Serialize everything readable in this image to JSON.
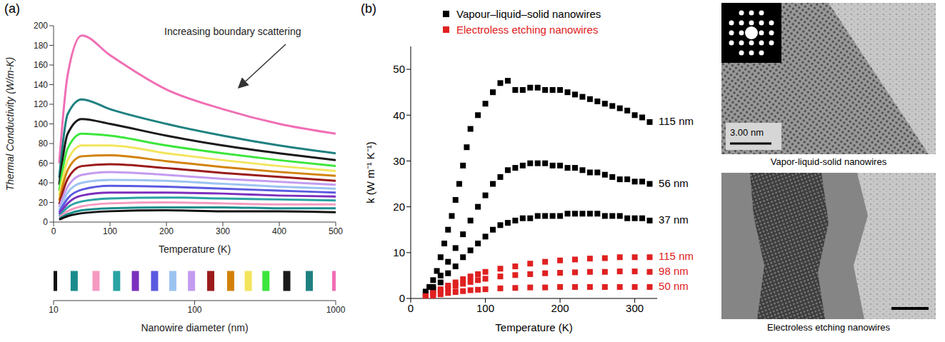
{
  "chart_data": [
    {
      "panel": "(a)",
      "type": "line",
      "annotation": "Increasing boundary scattering",
      "x_label": "Temperature (K)",
      "y_label": "Thermal Conductivity (W/m-K)",
      "x": [
        10,
        25,
        50,
        100,
        200,
        300,
        400,
        500
      ],
      "xlim": [
        0,
        500
      ],
      "xticks": [
        0,
        100,
        200,
        300,
        400,
        500
      ],
      "ylim": [
        0,
        200
      ],
      "yticks": [
        0,
        20,
        40,
        60,
        80,
        100,
        120,
        140,
        160,
        180,
        200
      ],
      "series": [
        {
          "diameter": 1000,
          "color": "#f06eb4",
          "values": [
            60,
            150,
            190,
            170,
            135,
            115,
            100,
            90
          ]
        },
        {
          "diameter": 650,
          "color": "#1f8080",
          "values": [
            45,
            110,
            125,
            115,
            100,
            88,
            78,
            70
          ]
        },
        {
          "diameter": 450,
          "color": "#1a1a1a",
          "values": [
            38,
            90,
            105,
            100,
            88,
            78,
            70,
            63
          ]
        },
        {
          "diameter": 320,
          "color": "#3ce63c",
          "values": [
            32,
            75,
            90,
            88,
            78,
            70,
            63,
            57
          ]
        },
        {
          "diameter": 240,
          "color": "#f2e55c",
          "values": [
            27,
            63,
            78,
            78,
            70,
            63,
            57,
            52
          ]
        },
        {
          "diameter": 180,
          "color": "#d2820a",
          "values": [
            22,
            53,
            67,
            68,
            62,
            56,
            51,
            47
          ]
        },
        {
          "diameter": 130,
          "color": "#9b1b1b",
          "values": [
            18,
            44,
            57,
            59,
            55,
            50,
            46,
            42
          ]
        },
        {
          "diameter": 95,
          "color": "#c39bf0",
          "values": [
            15,
            36,
            48,
            51,
            48,
            44,
            41,
            38
          ]
        },
        {
          "diameter": 70,
          "color": "#9cc3f0",
          "values": [
            12,
            30,
            40,
            43,
            42,
            39,
            36,
            34
          ]
        },
        {
          "diameter": 52,
          "color": "#5a5ae0",
          "values": [
            10,
            24,
            33,
            37,
            36,
            34,
            32,
            30
          ]
        },
        {
          "diameter": 38,
          "color": "#7b2fbe",
          "values": [
            8,
            19,
            27,
            30,
            30,
            29,
            27,
            26
          ]
        },
        {
          "diameter": 28,
          "color": "#2aa3a3",
          "values": [
            6,
            15,
            21,
            24,
            25,
            24,
            23,
            22
          ]
        },
        {
          "diameter": 20,
          "color": "#f59ac0",
          "values": [
            5,
            11,
            16,
            19,
            20,
            19,
            18,
            18
          ]
        },
        {
          "diameter": 14,
          "color": "#1a8c8c",
          "values": [
            3.5,
            8,
            12,
            14,
            15,
            15,
            14,
            14
          ]
        },
        {
          "diameter": 10,
          "color": "#111111",
          "values": [
            2.5,
            6,
            9,
            11,
            12,
            11,
            11,
            10
          ]
        }
      ],
      "diameter_axis": {
        "label": "Nanowire diameter (nm)",
        "log": true,
        "lim": [
          10,
          1000
        ],
        "ticks": [
          10,
          100,
          1000
        ]
      }
    },
    {
      "panel": "(b)",
      "type": "scatter",
      "marker": "square",
      "x_label": "Temperature (K)",
      "y_label": "k (W m⁻¹ K⁻¹)",
      "xlim": [
        0,
        330
      ],
      "xticks": [
        0,
        100,
        200,
        300
      ],
      "ylim": [
        0,
        55
      ],
      "yticks": [
        0,
        10,
        20,
        30,
        40,
        50
      ],
      "legend": "top right",
      "groups": [
        {
          "name": "Vapour–liquid–solid nanowires",
          "color": "#000000",
          "series": [
            {
              "name": "115 nm",
              "x": [
                20,
                25,
                30,
                35,
                40,
                45,
                50,
                55,
                60,
                65,
                70,
                75,
                80,
                90,
                100,
                110,
                120,
                130,
                140,
                150,
                160,
                170,
                180,
                190,
                200,
                210,
                220,
                230,
                240,
                250,
                260,
                270,
                280,
                290,
                300,
                310,
                320
              ],
              "values": [
                1.5,
                2.5,
                4,
                6,
                9,
                12,
                15,
                18,
                21.5,
                25,
                29,
                33,
                37,
                40,
                42.5,
                45,
                47,
                47.5,
                45.5,
                45.5,
                46,
                46,
                45.5,
                45.5,
                45.5,
                45,
                44.5,
                44,
                43.5,
                43,
                42.5,
                42,
                41.5,
                41,
                40,
                39.5,
                38.5
              ]
            },
            {
              "name": "56 nm",
              "x": [
                20,
                30,
                40,
                50,
                60,
                70,
                80,
                90,
                100,
                110,
                120,
                130,
                140,
                150,
                160,
                170,
                180,
                190,
                200,
                210,
                220,
                230,
                240,
                250,
                260,
                270,
                280,
                290,
                300,
                310,
                320
              ],
              "values": [
                1,
                2.5,
                5,
                8,
                11,
                14,
                17,
                20,
                22.5,
                25,
                26.5,
                28,
                28.5,
                29,
                29.5,
                29.5,
                29.5,
                29,
                29,
                28.5,
                28.5,
                28,
                27.5,
                27.5,
                27,
                26.5,
                26,
                26,
                25.5,
                25.5,
                25
              ]
            },
            {
              "name": "37 nm",
              "x": [
                20,
                30,
                40,
                50,
                60,
                70,
                80,
                90,
                100,
                110,
                120,
                130,
                140,
                150,
                160,
                170,
                180,
                190,
                200,
                210,
                220,
                230,
                240,
                250,
                260,
                270,
                280,
                290,
                300,
                310,
                320
              ],
              "values": [
                0.8,
                2,
                3.5,
                5.5,
                7,
                9,
                10.5,
                12,
                13.5,
                15,
                16,
                16.5,
                17,
                17.5,
                17.5,
                18,
                18,
                18,
                18,
                18.5,
                18.5,
                18.5,
                18.5,
                18.5,
                18,
                18,
                18,
                17.5,
                17.5,
                17.5,
                17
              ]
            }
          ]
        },
        {
          "name": "Electroless etching nanowires",
          "color": "#e02020",
          "series": [
            {
              "name": "115 nm",
              "x": [
                20,
                30,
                40,
                50,
                60,
                70,
                80,
                90,
                100,
                120,
                140,
                160,
                180,
                200,
                220,
                240,
                260,
                280,
                300,
                320
              ],
              "values": [
                0.5,
                1.2,
                2,
                2.8,
                3.5,
                4.2,
                4.8,
                5.3,
                5.8,
                6.5,
                7,
                7.6,
                8,
                8.3,
                8.5,
                8.7,
                8.8,
                9,
                9,
                9
              ]
            },
            {
              "name": "98 nm",
              "x": [
                20,
                30,
                40,
                50,
                60,
                70,
                80,
                90,
                100,
                120,
                140,
                160,
                180,
                200,
                220,
                240,
                260,
                280,
                300,
                320
              ],
              "values": [
                0.4,
                1,
                1.6,
                2.2,
                2.7,
                3.2,
                3.6,
                4,
                4.3,
                4.8,
                5.1,
                5.3,
                5.5,
                5.6,
                5.7,
                5.8,
                5.8,
                5.9,
                5.9,
                5.8
              ]
            },
            {
              "name": "50 nm",
              "x": [
                20,
                30,
                40,
                50,
                60,
                70,
                80,
                90,
                100,
                120,
                140,
                160,
                180,
                200,
                220,
                240,
                260,
                280,
                300,
                320
              ],
              "values": [
                0.3,
                0.6,
                0.9,
                1.2,
                1.4,
                1.6,
                1.8,
                1.9,
                2,
                2.2,
                2.3,
                2.4,
                2.4,
                2.5,
                2.5,
                2.5,
                2.5,
                2.5,
                2.5,
                2.5
              ]
            }
          ]
        }
      ]
    }
  ],
  "images": [
    {
      "caption": "Vapor-liquid-solid nanowires",
      "scale_bar": "3.00 nm"
    },
    {
      "caption": "Electroless etching nanowires"
    }
  ]
}
